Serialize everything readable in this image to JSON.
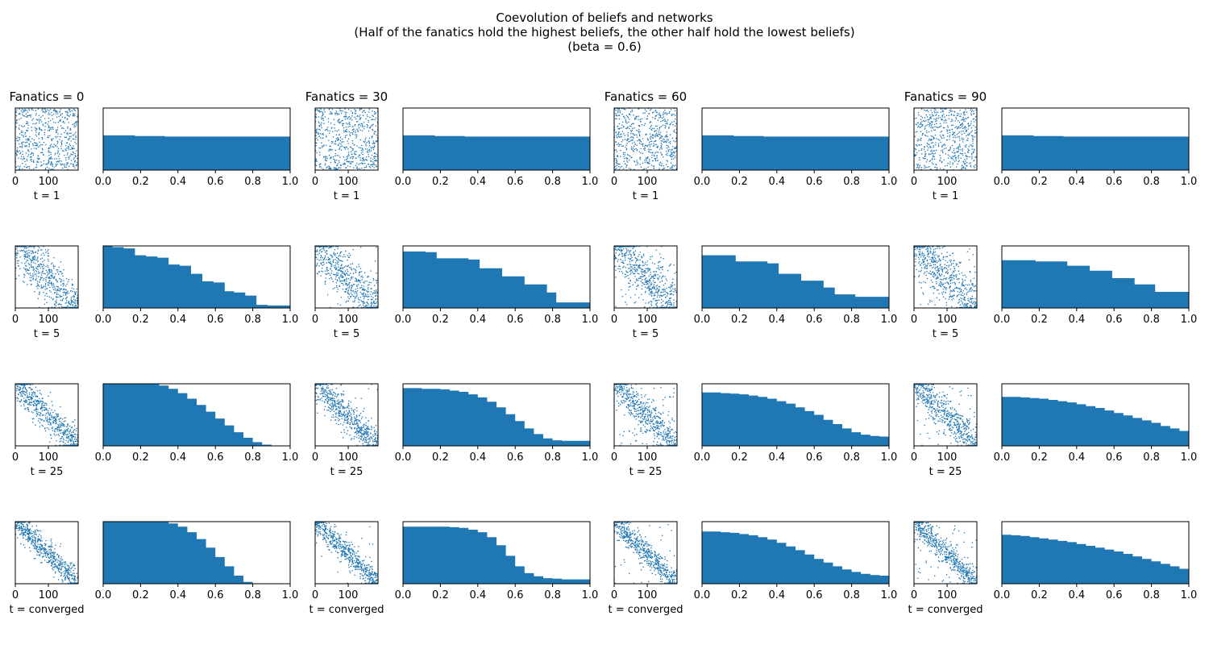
{
  "suptitle": {
    "line1": "Coevolution of beliefs and networks",
    "line2": "(Half of the fanatics hold the highest beliefs, the other half hold the lowest beliefs)",
    "line3": "(beta = 0.6)"
  },
  "colors": {
    "series": "#1f77b4",
    "axes": "#000000",
    "background": "#ffffff"
  },
  "chart_data": {
    "type": "grid of scatter and area plots",
    "columns": [
      {
        "title": "Fanatics = 0",
        "fanatics": 0
      },
      {
        "title": "Fanatics = 30",
        "fanatics": 30
      },
      {
        "title": "Fanatics = 60",
        "fanatics": 60
      },
      {
        "title": "Fanatics = 90",
        "fanatics": 90
      }
    ],
    "rows": [
      {
        "label": "t = 1",
        "scatter_pattern": "uniform"
      },
      {
        "label": "t = 5",
        "scatter_pattern": "diagonal-weak"
      },
      {
        "label": "t = 25",
        "scatter_pattern": "diagonal-medium"
      },
      {
        "label": "t = converged",
        "scatter_pattern": "diagonal-strong"
      }
    ],
    "scatter": {
      "xticks": [
        0,
        100
      ],
      "xlim": [
        0,
        190
      ],
      "ylim": [
        0,
        190
      ],
      "marker_color": "#1f77b4",
      "y_ticks_visible": false
    },
    "area": {
      "xticks": [
        0.0,
        0.2,
        0.4,
        0.6,
        0.8,
        1.0
      ],
      "xtick_labels": [
        "0.0",
        "0.2",
        "0.4",
        "0.6",
        "0.8",
        "1.0"
      ],
      "xlim": [
        0,
        1
      ],
      "ylim": [
        0,
        1
      ],
      "y_ticks_visible": false,
      "series": [
        [
          {
            "x": [
              0,
              0.17,
              0.33,
              1.0
            ],
            "y": [
              0.56,
              0.55,
              0.54,
              0.53
            ]
          },
          {
            "x": [
              0,
              0.17,
              0.33,
              1.0
            ],
            "y": [
              0.56,
              0.55,
              0.54,
              0.53
            ]
          },
          {
            "x": [
              0,
              0.17,
              0.33,
              1.0
            ],
            "y": [
              0.56,
              0.55,
              0.54,
              0.53
            ]
          },
          {
            "x": [
              0,
              0.17,
              0.33,
              1.0
            ],
            "y": [
              0.56,
              0.55,
              0.54,
              0.53
            ]
          }
        ],
        [
          {
            "x": [
              0,
              0.05,
              0.11,
              0.17,
              0.23,
              0.29,
              0.35,
              0.41,
              0.47,
              0.53,
              0.59,
              0.65,
              0.7,
              0.76,
              0.82,
              0.88,
              1.0
            ],
            "y": [
              1.0,
              0.98,
              0.96,
              0.85,
              0.83,
              0.81,
              0.7,
              0.68,
              0.55,
              0.43,
              0.41,
              0.27,
              0.25,
              0.2,
              0.05,
              0.04,
              0.03
            ]
          },
          {
            "x": [
              0,
              0.12,
              0.18,
              0.35,
              0.41,
              0.53,
              0.65,
              0.77,
              0.82,
              1.0
            ],
            "y": [
              0.91,
              0.9,
              0.8,
              0.78,
              0.64,
              0.51,
              0.38,
              0.25,
              0.09,
              0.08
            ]
          },
          {
            "x": [
              0,
              0.18,
              0.35,
              0.41,
              0.53,
              0.65,
              0.71,
              0.82,
              1.0
            ],
            "y": [
              0.85,
              0.75,
              0.72,
              0.55,
              0.44,
              0.33,
              0.22,
              0.18,
              0.17
            ]
          },
          {
            "x": [
              0,
              0.18,
              0.35,
              0.47,
              0.59,
              0.71,
              0.82,
              1.0
            ],
            "y": [
              0.77,
              0.75,
              0.68,
              0.6,
              0.48,
              0.38,
              0.26,
              0.25
            ]
          }
        ],
        [
          {
            "x": [
              0,
              0.05,
              0.1,
              0.15,
              0.2,
              0.25,
              0.3,
              0.35,
              0.4,
              0.45,
              0.5,
              0.55,
              0.6,
              0.65,
              0.7,
              0.75,
              0.8,
              0.85,
              0.9,
              0.95,
              1.0
            ],
            "y": [
              1.0,
              1.0,
              1.0,
              1.0,
              1.0,
              1.0,
              0.97,
              0.92,
              0.85,
              0.76,
              0.66,
              0.55,
              0.44,
              0.33,
              0.22,
              0.13,
              0.06,
              0.02,
              0.0,
              0.0,
              0.0
            ]
          },
          {
            "x": [
              0,
              0.05,
              0.1,
              0.15,
              0.2,
              0.25,
              0.3,
              0.35,
              0.4,
              0.45,
              0.5,
              0.55,
              0.6,
              0.65,
              0.7,
              0.75,
              0.8,
              0.85,
              0.9,
              0.95,
              1.0
            ],
            "y": [
              0.93,
              0.93,
              0.92,
              0.92,
              0.91,
              0.89,
              0.87,
              0.83,
              0.78,
              0.71,
              0.62,
              0.51,
              0.4,
              0.28,
              0.19,
              0.12,
              0.09,
              0.08,
              0.08,
              0.08,
              0.08
            ]
          },
          {
            "x": [
              0,
              0.05,
              0.1,
              0.15,
              0.2,
              0.25,
              0.3,
              0.35,
              0.4,
              0.45,
              0.5,
              0.55,
              0.6,
              0.65,
              0.7,
              0.75,
              0.8,
              0.85,
              0.9,
              0.95,
              1.0
            ],
            "y": [
              0.86,
              0.86,
              0.85,
              0.84,
              0.83,
              0.81,
              0.79,
              0.76,
              0.72,
              0.68,
              0.62,
              0.56,
              0.5,
              0.42,
              0.35,
              0.28,
              0.22,
              0.18,
              0.16,
              0.15,
              0.15
            ]
          },
          {
            "x": [
              0,
              0.05,
              0.1,
              0.15,
              0.2,
              0.25,
              0.3,
              0.35,
              0.4,
              0.45,
              0.5,
              0.55,
              0.6,
              0.65,
              0.7,
              0.75,
              0.8,
              0.85,
              0.9,
              0.95,
              1.0
            ],
            "y": [
              0.79,
              0.79,
              0.78,
              0.77,
              0.76,
              0.74,
              0.72,
              0.7,
              0.67,
              0.64,
              0.61,
              0.57,
              0.53,
              0.49,
              0.45,
              0.41,
              0.37,
              0.32,
              0.28,
              0.24,
              0.22
            ]
          }
        ],
        [
          {
            "x": [
              0,
              0.05,
              0.1,
              0.15,
              0.2,
              0.25,
              0.3,
              0.35,
              0.4,
              0.45,
              0.5,
              0.55,
              0.6,
              0.65,
              0.7,
              0.75,
              0.8,
              0.85,
              1.0
            ],
            "y": [
              1.0,
              1.0,
              1.0,
              1.0,
              1.0,
              1.0,
              1.0,
              0.97,
              0.92,
              0.83,
              0.72,
              0.58,
              0.43,
              0.28,
              0.13,
              0.03,
              0.0,
              0.0,
              0.0
            ]
          },
          {
            "x": [
              0,
              0.05,
              0.1,
              0.15,
              0.2,
              0.25,
              0.3,
              0.35,
              0.4,
              0.45,
              0.5,
              0.55,
              0.6,
              0.65,
              0.7,
              0.75,
              0.8,
              0.85,
              0.9,
              0.95,
              1.0
            ],
            "y": [
              0.92,
              0.92,
              0.92,
              0.92,
              0.92,
              0.91,
              0.9,
              0.87,
              0.83,
              0.75,
              0.62,
              0.45,
              0.28,
              0.17,
              0.12,
              0.09,
              0.08,
              0.07,
              0.07,
              0.07,
              0.07
            ]
          },
          {
            "x": [
              0,
              0.05,
              0.1,
              0.15,
              0.2,
              0.25,
              0.3,
              0.35,
              0.4,
              0.45,
              0.5,
              0.55,
              0.6,
              0.65,
              0.7,
              0.75,
              0.8,
              0.85,
              0.9,
              0.95,
              1.0
            ],
            "y": [
              0.84,
              0.84,
              0.83,
              0.82,
              0.8,
              0.78,
              0.75,
              0.71,
              0.66,
              0.6,
              0.54,
              0.47,
              0.4,
              0.34,
              0.28,
              0.23,
              0.19,
              0.16,
              0.14,
              0.13,
              0.13
            ]
          },
          {
            "x": [
              0,
              0.05,
              0.1,
              0.15,
              0.2,
              0.25,
              0.3,
              0.35,
              0.4,
              0.45,
              0.5,
              0.55,
              0.6,
              0.65,
              0.7,
              0.75,
              0.8,
              0.85,
              0.9,
              0.95,
              1.0
            ],
            "y": [
              0.79,
              0.78,
              0.77,
              0.75,
              0.73,
              0.71,
              0.69,
              0.67,
              0.64,
              0.61,
              0.58,
              0.55,
              0.52,
              0.48,
              0.44,
              0.4,
              0.36,
              0.32,
              0.28,
              0.24,
              0.22
            ]
          }
        ]
      ]
    }
  }
}
